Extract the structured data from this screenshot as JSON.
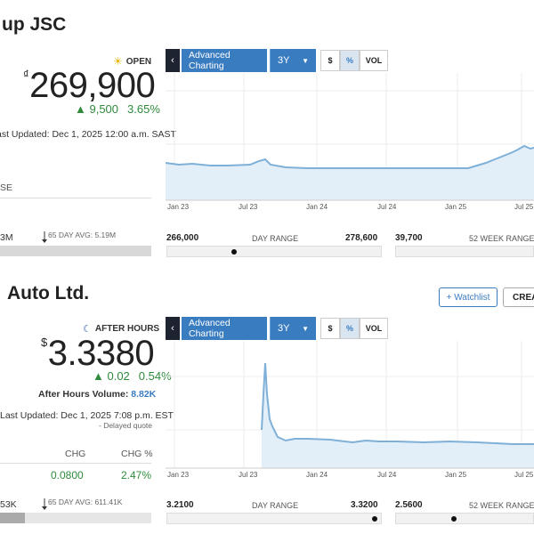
{
  "stock1": {
    "title": "up JSC",
    "status": "OPEN",
    "currency": "₫",
    "price": "269,900",
    "change": "▲ 9,500",
    "change_pct": "3.65%",
    "last_updated": "ast Updated: Dec 1, 2025 12:00 a.m. SAST",
    "partial_label": "SE",
    "volume": "3M",
    "avg_label": "65 DAY AVG: 5.19M",
    "chart": {
      "advanced": "Advanced Charting",
      "range": "3Y",
      "toggles": [
        "$",
        "%",
        "VOL"
      ],
      "x_labels": [
        "Jan 23",
        "Jul 23",
        "Jan 24",
        "Jul 24",
        "Jan 25",
        "Jul 25"
      ]
    },
    "day_low": "266,000",
    "day_label": "DAY RANGE",
    "day_high": "278,600",
    "wk_low": "39,700",
    "wk_label": "52 WEEK RANGE"
  },
  "stock2": {
    "title": "Auto Ltd.",
    "watchlist": "+ Watchlist",
    "create": "CREA",
    "status": "AFTER HOURS",
    "currency": "$",
    "price": "3.3380",
    "change": "▲ 0.02",
    "change_pct": "0.54%",
    "ah_volume_label": "After Hours Volume:",
    "ah_volume": "8.82K",
    "last_updated": "Last Updated: Dec 1, 2025 7:08 p.m. EST",
    "delayed": "- Delayed quote",
    "col_chg": "CHG",
    "col_chg_pct": "CHG %",
    "val_chg": "0.0800",
    "val_chg_pct": "2.47%",
    "volume": "53K",
    "avg_label": "65 DAY AVG: 611.41K",
    "chart": {
      "advanced": "Advanced Charting",
      "range": "3Y",
      "toggles": [
        "$",
        "%",
        "VOL"
      ],
      "x_labels": [
        "Jan 23",
        "Jul 23",
        "Jan 24",
        "Jul 24",
        "Jan 25",
        "Jul 25"
      ]
    },
    "day_low": "3.2100",
    "day_label": "DAY RANGE",
    "day_high": "3.3200",
    "wk_low": "2.5600",
    "wk_label": "52 WEEK RANGE"
  },
  "colors": {
    "accent": "#3a7cc0",
    "up": "#2f8a3c",
    "line": "#7fb0d8",
    "fill": "#e2eef8"
  }
}
